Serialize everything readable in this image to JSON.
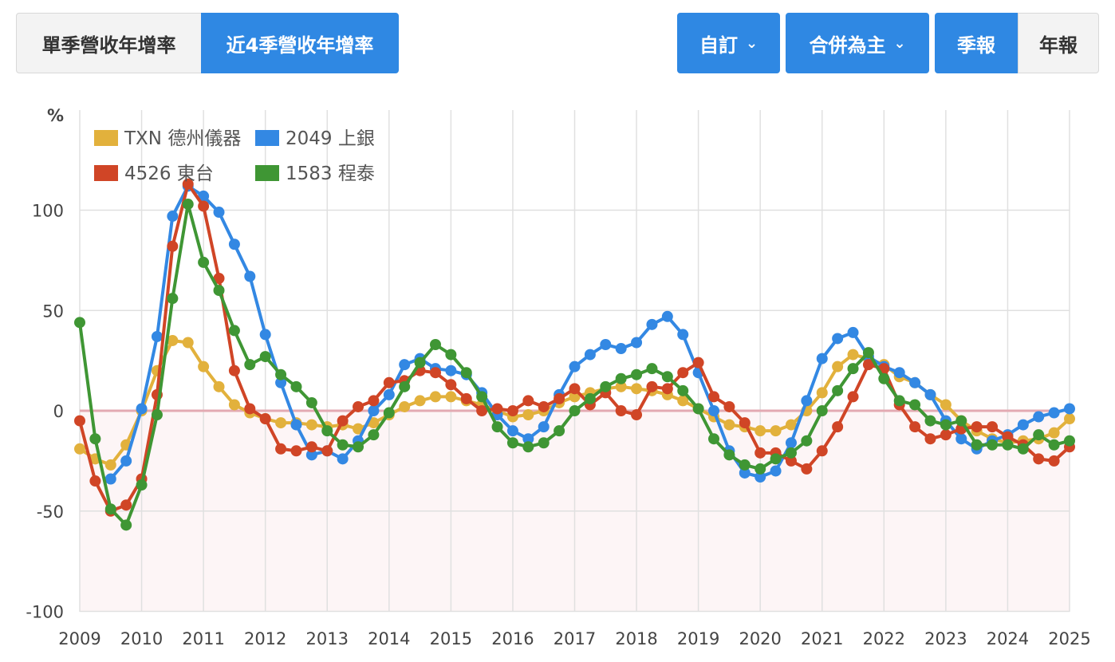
{
  "tabs": [
    {
      "label": "單季營收年增率",
      "active": false
    },
    {
      "label": "近4季營收年增率",
      "active": true
    }
  ],
  "controls": {
    "custom": "自訂",
    "consolidated": "合併為主",
    "quarterly": "季報",
    "annual": "年報"
  },
  "chart_data": {
    "type": "line",
    "ylabel": "%",
    "ylim": [
      -100,
      150
    ],
    "yticks": [
      100,
      50,
      0,
      -50,
      -100
    ],
    "xticks": [
      "2009",
      "2010",
      "2011",
      "2012",
      "2013",
      "2014",
      "2015",
      "2016",
      "2017",
      "2018",
      "2019",
      "2020",
      "2021",
      "2022",
      "2023",
      "2024",
      "2025"
    ],
    "x_start": 2009,
    "x_step": 0.25,
    "legend_position": "top-left",
    "series": [
      {
        "name": "TXN 德州儀器",
        "color": "#e2b13c",
        "values": [
          -19,
          -24,
          -27,
          -17,
          0,
          20,
          35,
          34,
          22,
          12,
          3,
          -1,
          -4,
          -6,
          -6,
          -7,
          -8,
          -7,
          -9,
          -6,
          -2,
          2,
          5,
          7,
          7,
          5,
          3,
          0,
          -3,
          -2,
          0,
          4,
          7,
          9,
          11,
          12,
          11,
          10,
          8,
          5,
          1,
          -3,
          -7,
          -8,
          -10,
          -10,
          -7,
          0,
          9,
          22,
          28,
          26,
          23,
          17,
          14,
          8,
          3,
          -5,
          -10,
          -14,
          -16,
          -15,
          -14,
          -11,
          -4
        ]
      },
      {
        "name": "2049 上銀",
        "color": "#3388e3",
        "values": [
          null,
          null,
          -34,
          -25,
          1,
          37,
          97,
          112,
          107,
          99,
          83,
          67,
          38,
          14,
          -7,
          -22,
          -20,
          -24,
          -15,
          0,
          8,
          23,
          26,
          21,
          20,
          18,
          9,
          -2,
          -10,
          -14,
          -8,
          8,
          22,
          28,
          33,
          31,
          34,
          43,
          47,
          38,
          19,
          0,
          -20,
          -31,
          -33,
          -30,
          -16,
          5,
          26,
          36,
          39,
          27,
          22,
          19,
          14,
          8,
          -5,
          -14,
          -19,
          -15,
          -12,
          -7,
          -3,
          -1,
          1
        ]
      },
      {
        "name": "4526 東台",
        "color": "#d04526",
        "values": [
          -5,
          -35,
          -50,
          -47,
          -34,
          8,
          82,
          113,
          102,
          66,
          20,
          1,
          -4,
          -19,
          -20,
          -18,
          -20,
          -5,
          2,
          5,
          14,
          15,
          20,
          19,
          13,
          6,
          0,
          1,
          0,
          5,
          2,
          6,
          11,
          3,
          9,
          0,
          -2,
          12,
          11,
          19,
          24,
          7,
          2,
          -6,
          -21,
          -21,
          -25,
          -29,
          -20,
          -8,
          7,
          23,
          21,
          3,
          -8,
          -14,
          -12,
          -9,
          -8,
          -8,
          -13,
          -17,
          -24,
          -25,
          -18
        ]
      },
      {
        "name": "1583 程泰",
        "color": "#3f9634",
        "values": [
          44,
          -14,
          -49,
          -57,
          -37,
          -2,
          56,
          103,
          74,
          60,
          40,
          23,
          27,
          18,
          12,
          4,
          -10,
          -17,
          -18,
          -12,
          -1,
          12,
          24,
          33,
          28,
          19,
          7,
          -8,
          -16,
          -18,
          -16,
          -10,
          0,
          6,
          12,
          16,
          18,
          21,
          17,
          10,
          1,
          -14,
          -22,
          -27,
          -29,
          -24,
          -21,
          -15,
          0,
          10,
          21,
          29,
          16,
          5,
          3,
          -5,
          -7,
          -5,
          -17,
          -17,
          -17,
          -19,
          -12,
          -17,
          -15
        ]
      }
    ]
  }
}
